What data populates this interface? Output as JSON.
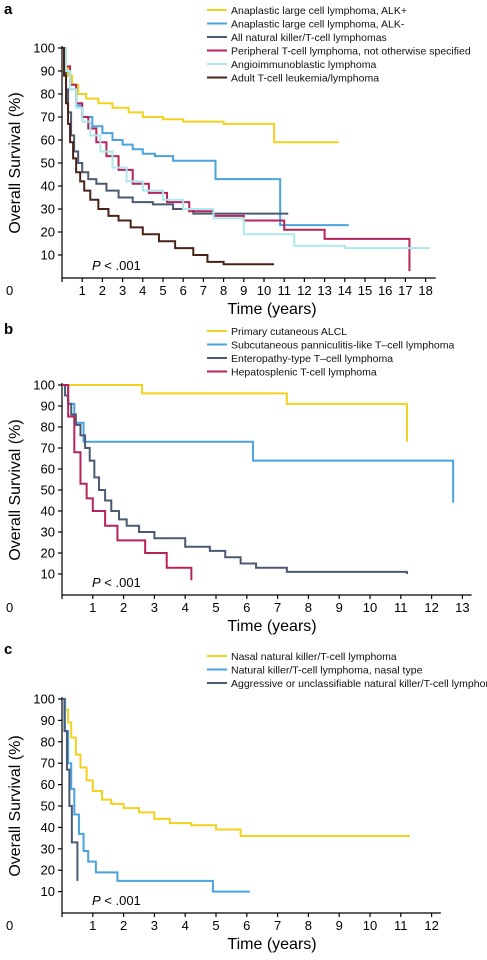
{
  "chart_data": [
    {
      "type": "line",
      "panel_label": "a",
      "xlabel": "Time (years)",
      "ylabel": "Overall Survival (%)",
      "xlim": [
        0,
        18.5
      ],
      "ylim": [
        0,
        100
      ],
      "xticks": [
        0,
        1,
        2,
        3,
        4,
        5,
        6,
        7,
        8,
        9,
        10,
        11,
        12,
        13,
        14,
        15,
        16,
        17,
        18
      ],
      "yticks": [
        10,
        20,
        30,
        40,
        50,
        60,
        70,
        80,
        90,
        100
      ],
      "annotation": "P < .001",
      "legend_position": "top-right",
      "series": [
        {
          "name": "Anaplastic large cell lymphoma, ALK+",
          "color": "#f2d21e",
          "x": [
            0,
            0.15,
            0.3,
            0.5,
            0.8,
            1.2,
            1.8,
            2.5,
            3.3,
            4,
            5,
            6,
            8,
            10.5,
            13.7
          ],
          "y": [
            100,
            92,
            88,
            84,
            80,
            78,
            76,
            74,
            72,
            70,
            69,
            68,
            67,
            59,
            59
          ]
        },
        {
          "name": "Anaplastic large cell lymphoma, ALK-",
          "color": "#4aa3df",
          "x": [
            0,
            0.2,
            0.4,
            0.7,
            1,
            1.5,
            2,
            2.5,
            3,
            3.5,
            4,
            4.6,
            5.5,
            7.6,
            10.8,
            14.2
          ],
          "y": [
            100,
            90,
            82,
            75,
            70,
            66,
            63,
            60,
            58,
            56,
            54,
            53,
            51,
            43,
            23,
            23
          ]
        },
        {
          "name": "All natural killer/T-cell lymphomas",
          "color": "#4a5a72",
          "x": [
            0,
            0.1,
            0.2,
            0.3,
            0.45,
            0.6,
            0.8,
            1,
            1.3,
            1.7,
            2.2,
            2.8,
            3.5,
            4.5,
            5.5,
            6.5,
            11.2
          ],
          "y": [
            100,
            92,
            82,
            72,
            62,
            55,
            50,
            46,
            43,
            41,
            38,
            35,
            33,
            32,
            30,
            28,
            28
          ]
        },
        {
          "name": "Peripheral T-cell lymphoma, not otherwise specified",
          "color": "#b5245d",
          "x": [
            0,
            0.2,
            0.4,
            0.7,
            1,
            1.3,
            1.7,
            2.2,
            2.8,
            3.5,
            4.3,
            5.2,
            6.3,
            7.5,
            9,
            11,
            13,
            17.2,
            17.2
          ],
          "y": [
            100,
            92,
            84,
            76,
            70,
            65,
            59,
            53,
            47,
            41,
            37,
            33,
            29,
            27,
            25,
            21,
            17,
            17,
            3
          ]
        },
        {
          "name": "Angioimmunoblastic lymphoma",
          "color": "#aee8ec",
          "x": [
            0,
            0.2,
            0.4,
            0.7,
            1,
            1.4,
            1.9,
            2.5,
            3.2,
            4,
            5,
            6,
            7.5,
            9,
            11.5,
            14,
            18.2
          ],
          "y": [
            100,
            90,
            82,
            74,
            68,
            62,
            55,
            48,
            42,
            38,
            34,
            30,
            26,
            19,
            14,
            13,
            13
          ]
        },
        {
          "name": "Adult T-cell leukemia/lymphoma",
          "color": "#4a2318",
          "x": [
            0,
            0.1,
            0.2,
            0.3,
            0.4,
            0.55,
            0.7,
            0.9,
            1.1,
            1.4,
            1.8,
            2.3,
            2.8,
            3.4,
            4,
            4.8,
            5.6,
            6.5,
            7.2,
            8,
            10.5
          ],
          "y": [
            100,
            88,
            76,
            67,
            59,
            52,
            46,
            42,
            38,
            34,
            30,
            27,
            25,
            22,
            19,
            16,
            13,
            10,
            7,
            6,
            6
          ]
        }
      ]
    },
    {
      "type": "line",
      "panel_label": "b",
      "xlabel": "Time (years)",
      "ylabel": "Overall Survival (%)",
      "xlim": [
        0,
        13.3
      ],
      "ylim": [
        0,
        100
      ],
      "xticks": [
        0,
        1,
        2,
        3,
        4,
        5,
        6,
        7,
        8,
        9,
        10,
        11,
        12,
        13
      ],
      "yticks": [
        10,
        20,
        30,
        40,
        50,
        60,
        70,
        80,
        90,
        100
      ],
      "annotation": "P < .001",
      "legend_position": "top-right",
      "series": [
        {
          "name": "Primary cutaneous ALCL",
          "color": "#f2d21e",
          "x": [
            0,
            1.8,
            2.6,
            7.3,
            11.2
          ],
          "y": [
            100,
            100,
            96,
            91,
            73
          ]
        },
        {
          "name": "Subcutaneous panniculitis-like T–cell lymphoma",
          "color": "#4aa3df",
          "x": [
            0,
            0.2,
            0.4,
            0.7,
            6.2,
            12.7
          ],
          "y": [
            100,
            91,
            82,
            73,
            64,
            44
          ]
        },
        {
          "name": "Enteropathy-type T–cell lymphoma",
          "color": "#4a5a72",
          "x": [
            0,
            0.1,
            0.2,
            0.3,
            0.45,
            0.6,
            0.75,
            0.9,
            1.05,
            1.2,
            1.4,
            1.6,
            1.85,
            2.1,
            2.5,
            3,
            4,
            4.8,
            5.3,
            5.8,
            6.3,
            7.3,
            11.2
          ],
          "y": [
            100,
            95,
            91,
            86,
            81,
            76,
            70,
            64,
            56,
            50,
            45,
            40,
            36,
            33,
            30,
            27,
            23,
            21,
            18,
            15,
            13,
            11,
            10
          ]
        },
        {
          "name": "Hepatosplenic T-cell lymphoma",
          "color": "#b5245d",
          "x": [
            0,
            0.2,
            0.4,
            0.6,
            0.8,
            1,
            1.4,
            1.8,
            2.7,
            3.4,
            4.2
          ],
          "y": [
            100,
            85,
            68,
            53,
            46,
            40,
            33,
            26,
            20,
            13,
            7
          ]
        }
      ]
    },
    {
      "type": "line",
      "panel_label": "c",
      "xlabel": "Time (years)",
      "ylabel": "Overall Survival (%)",
      "xlim": [
        0,
        12.3
      ],
      "ylim": [
        0,
        100
      ],
      "xticks": [
        0,
        1,
        2,
        3,
        4,
        5,
        6,
        7,
        8,
        9,
        10,
        11,
        12
      ],
      "yticks": [
        10,
        20,
        30,
        40,
        50,
        60,
        70,
        80,
        90,
        100
      ],
      "annotation": "P < .001",
      "legend_position": "top-right",
      "series": [
        {
          "name": "Nasal natural killer/T-cell lymphoma",
          "color": "#f2d21e",
          "x": [
            0,
            0.1,
            0.2,
            0.3,
            0.45,
            0.6,
            0.8,
            1,
            1.3,
            1.6,
            2,
            2.5,
            3,
            3.5,
            4.2,
            5,
            5.8,
            6.5,
            11.3
          ],
          "y": [
            100,
            95,
            89,
            82,
            74,
            68,
            62,
            57,
            53,
            51,
            49,
            47,
            44,
            42,
            41,
            39,
            36,
            36,
            36
          ]
        },
        {
          "name": "Natural killer/T-cell lymphoma, nasal type",
          "color": "#4aa3df",
          "x": [
            0,
            0.1,
            0.2,
            0.3,
            0.4,
            0.55,
            0.7,
            0.85,
            1.1,
            1.8,
            4.9,
            6.1
          ],
          "y": [
            100,
            85,
            70,
            58,
            46,
            37,
            29,
            24,
            19,
            15,
            10,
            10
          ]
        },
        {
          "name": "Aggressive or unclassifiable natural killer/T-cell lymphoma",
          "color": "#4a5a72",
          "x": [
            0,
            0.08,
            0.16,
            0.24,
            0.32,
            0.5
          ],
          "y": [
            100,
            85,
            67,
            50,
            33,
            15
          ]
        }
      ]
    }
  ]
}
